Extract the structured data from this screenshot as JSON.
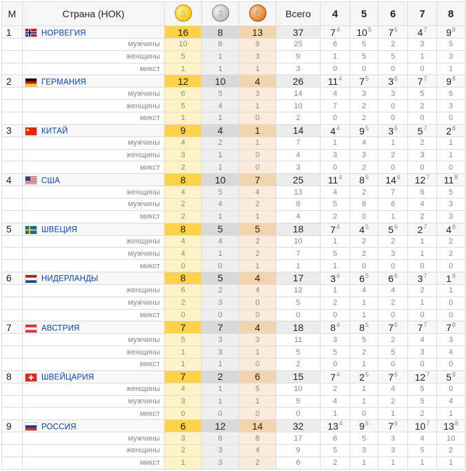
{
  "header": {
    "rank": "М",
    "country": "Страна (НОК)",
    "medals": [
      "1",
      "2",
      "3"
    ],
    "total": "Всего",
    "places": [
      4,
      5,
      6,
      7,
      8
    ]
  },
  "rows": [
    {
      "rank": 1,
      "country": "НОРВЕГИЯ",
      "medals": [
        16,
        8,
        13
      ],
      "total": 37,
      "places": [
        [
          7,
          4
        ],
        [
          10,
          5
        ],
        [
          7,
          6
        ],
        [
          4,
          7
        ],
        [
          9,
          8
        ]
      ],
      "sub": [
        {
          "label": "мужчины",
          "medals": [
            10,
            6,
            9
          ],
          "total": 25,
          "places": [
            6,
            5,
            2,
            3,
            5
          ]
        },
        {
          "label": "женщины",
          "medals": [
            5,
            1,
            3
          ],
          "total": 9,
          "places": [
            1,
            5,
            5,
            1,
            3
          ]
        },
        {
          "label": "микст",
          "medals": [
            1,
            1,
            1
          ],
          "total": 3,
          "places": [
            0,
            0,
            0,
            0,
            1
          ]
        }
      ]
    },
    {
      "rank": 2,
      "country": "ГЕРМАНИЯ",
      "medals": [
        12,
        10,
        4
      ],
      "total": 26,
      "places": [
        [
          11,
          4
        ],
        [
          7,
          5
        ],
        [
          3,
          6
        ],
        [
          7,
          7
        ],
        [
          9,
          8
        ]
      ],
      "sub": [
        {
          "label": "мужчины",
          "medals": [
            6,
            5,
            3
          ],
          "total": 14,
          "places": [
            4,
            3,
            3,
            5,
            6
          ]
        },
        {
          "label": "женщины",
          "medals": [
            5,
            4,
            1
          ],
          "total": 10,
          "places": [
            7,
            2,
            0,
            2,
            3
          ]
        },
        {
          "label": "микст",
          "medals": [
            1,
            1,
            0
          ],
          "total": 2,
          "places": [
            0,
            2,
            0,
            0,
            0
          ]
        }
      ]
    },
    {
      "rank": 3,
      "country": "КИТАЙ",
      "medals": [
        9,
        4,
        1
      ],
      "total": 14,
      "places": [
        [
          4,
          4
        ],
        [
          9,
          5
        ],
        [
          3,
          6
        ],
        [
          5,
          7
        ],
        [
          2,
          8
        ]
      ],
      "sub": [
        {
          "label": "мужчины",
          "medals": [
            4,
            2,
            1
          ],
          "total": 7,
          "places": [
            1,
            4,
            1,
            2,
            1
          ]
        },
        {
          "label": "женщины",
          "medals": [
            3,
            1,
            0
          ],
          "total": 4,
          "places": [
            3,
            3,
            2,
            3,
            1
          ]
        },
        {
          "label": "микст",
          "medals": [
            2,
            1,
            0
          ],
          "total": 3,
          "places": [
            0,
            2,
            0,
            0,
            0
          ]
        }
      ]
    },
    {
      "rank": 4,
      "country": "США",
      "medals": [
        8,
        10,
        7
      ],
      "total": 25,
      "places": [
        [
          11,
          4
        ],
        [
          8,
          5
        ],
        [
          14,
          6
        ],
        [
          12,
          7
        ],
        [
          11,
          8
        ]
      ],
      "sub": [
        {
          "label": "женщины",
          "medals": [
            4,
            5,
            4
          ],
          "total": 13,
          "places": [
            4,
            2,
            7,
            6,
            5
          ]
        },
        {
          "label": "мужчины",
          "medals": [
            2,
            4,
            2
          ],
          "total": 8,
          "places": [
            5,
            6,
            6,
            4,
            3
          ]
        },
        {
          "label": "микст",
          "medals": [
            2,
            1,
            1
          ],
          "total": 4,
          "places": [
            2,
            0,
            1,
            2,
            3
          ]
        }
      ]
    },
    {
      "rank": 5,
      "country": "ШВЕЦИЯ",
      "medals": [
        8,
        5,
        5
      ],
      "total": 18,
      "places": [
        [
          7,
          4
        ],
        [
          4,
          5
        ],
        [
          5,
          6
        ],
        [
          2,
          7
        ],
        [
          4,
          8
        ]
      ],
      "sub": [
        {
          "label": "женщины",
          "medals": [
            4,
            4,
            2
          ],
          "total": 10,
          "places": [
            1,
            2,
            2,
            1,
            2
          ]
        },
        {
          "label": "мужчины",
          "medals": [
            4,
            1,
            2
          ],
          "total": 7,
          "places": [
            5,
            2,
            3,
            1,
            2
          ]
        },
        {
          "label": "микст",
          "medals": [
            0,
            0,
            1
          ],
          "total": 1,
          "places": [
            1,
            0,
            0,
            0,
            0
          ]
        }
      ]
    },
    {
      "rank": 6,
      "country": "НИДЕРЛАНДЫ",
      "medals": [
        8,
        5,
        4
      ],
      "total": 17,
      "places": [
        [
          3,
          4
        ],
        [
          6,
          5
        ],
        [
          6,
          6
        ],
        [
          3,
          7
        ],
        [
          1,
          8
        ]
      ],
      "sub": [
        {
          "label": "женщины",
          "medals": [
            6,
            2,
            4
          ],
          "total": 12,
          "places": [
            1,
            4,
            4,
            2,
            1
          ]
        },
        {
          "label": "мужчины",
          "medals": [
            2,
            3,
            0
          ],
          "total": 5,
          "places": [
            2,
            1,
            2,
            1,
            0
          ]
        },
        {
          "label": "микст",
          "medals": [
            0,
            0,
            0
          ],
          "total": 0,
          "places": [
            0,
            1,
            0,
            0,
            0
          ]
        }
      ]
    },
    {
      "rank": 7,
      "country": "АВСТРИЯ",
      "medals": [
        7,
        7,
        4
      ],
      "total": 18,
      "places": [
        [
          8,
          4
        ],
        [
          8,
          5
        ],
        [
          7,
          6
        ],
        [
          7,
          7
        ],
        [
          7,
          8
        ]
      ],
      "sub": [
        {
          "label": "мужчины",
          "medals": [
            5,
            3,
            3
          ],
          "total": 11,
          "places": [
            3,
            5,
            2,
            4,
            3
          ]
        },
        {
          "label": "женщины",
          "medals": [
            1,
            3,
            1
          ],
          "total": 5,
          "places": [
            5,
            2,
            5,
            3,
            4
          ]
        },
        {
          "label": "микст",
          "medals": [
            1,
            1,
            0
          ],
          "total": 2,
          "places": [
            0,
            1,
            0,
            0,
            0
          ]
        }
      ]
    },
    {
      "rank": 8,
      "country": "ШВЕЙЦАРИЯ",
      "medals": [
        7,
        2,
        6
      ],
      "total": 15,
      "places": [
        [
          7,
          4
        ],
        [
          2,
          5
        ],
        [
          7,
          6
        ],
        [
          12,
          7
        ],
        [
          5,
          8
        ]
      ],
      "sub": [
        {
          "label": "женщины",
          "medals": [
            4,
            1,
            5
          ],
          "total": 10,
          "places": [
            2,
            1,
            4,
            5,
            0
          ]
        },
        {
          "label": "мужчины",
          "medals": [
            3,
            1,
            1
          ],
          "total": 5,
          "places": [
            4,
            1,
            2,
            5,
            4
          ]
        },
        {
          "label": "микст",
          "medals": [
            0,
            0,
            0
          ],
          "total": 0,
          "places": [
            1,
            0,
            1,
            2,
            1
          ]
        }
      ]
    },
    {
      "rank": 9,
      "country": "РОССИЯ",
      "medals": [
        6,
        12,
        14
      ],
      "total": 32,
      "places": [
        [
          13,
          4
        ],
        [
          9,
          5
        ],
        [
          7,
          6
        ],
        [
          10,
          7
        ],
        [
          13,
          8
        ]
      ],
      "sub": [
        {
          "label": "мужчины",
          "medals": [
            3,
            6,
            8
          ],
          "total": 17,
          "places": [
            6,
            5,
            3,
            4,
            10
          ]
        },
        {
          "label": "женщины",
          "medals": [
            2,
            3,
            4
          ],
          "total": 9,
          "places": [
            5,
            3,
            3,
            5,
            2
          ]
        },
        {
          "label": "микст",
          "medals": [
            1,
            3,
            2
          ],
          "total": 6,
          "places": [
            2,
            1,
            1,
            1,
            1
          ]
        }
      ]
    }
  ]
}
